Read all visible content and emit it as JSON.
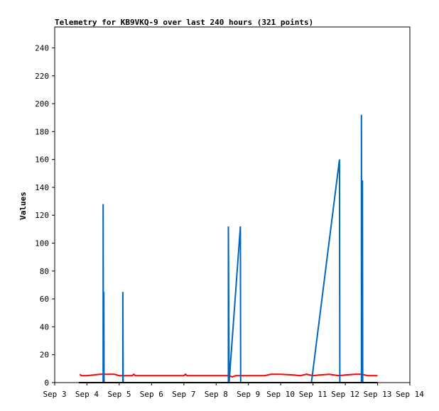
{
  "chart_data": {
    "type": "line",
    "title": "Telemetry for KB9VKQ-9 over last 240 hours (321 points)",
    "xlabel": "",
    "ylabel": "Values",
    "xlim": [
      0,
      11
    ],
    "ylim": [
      0,
      255
    ],
    "x_ticks": [
      {
        "pos": 0,
        "label": "Sep 3"
      },
      {
        "pos": 1,
        "label": "Sep 4"
      },
      {
        "pos": 2,
        "label": "Sep 5"
      },
      {
        "pos": 3,
        "label": "Sep 6"
      },
      {
        "pos": 4,
        "label": "Sep 7"
      },
      {
        "pos": 5,
        "label": "Sep 8"
      },
      {
        "pos": 6,
        "label": "Sep 9"
      },
      {
        "pos": 7,
        "label": "Sep 10"
      },
      {
        "pos": 8,
        "label": "Sep 11"
      },
      {
        "pos": 9,
        "label": "Sep 12"
      },
      {
        "pos": 10,
        "label": "Sep 13"
      },
      {
        "pos": 11,
        "label": "Sep 14"
      }
    ],
    "y_ticks": [
      0,
      20,
      40,
      60,
      80,
      100,
      120,
      140,
      160,
      180,
      200,
      220,
      240
    ],
    "grid": false,
    "legend": "none",
    "series": [
      {
        "color": "#ff0000",
        "points": [
          [
            0.78,
            6
          ],
          [
            0.82,
            5
          ],
          [
            1.0,
            5
          ],
          [
            1.2,
            5.5
          ],
          [
            1.4,
            6
          ],
          [
            1.6,
            6
          ],
          [
            1.85,
            6
          ],
          [
            2.0,
            5
          ],
          [
            2.4,
            5
          ],
          [
            2.45,
            6
          ],
          [
            2.5,
            5
          ],
          [
            3.0,
            5
          ],
          [
            3.5,
            5
          ],
          [
            4.0,
            5
          ],
          [
            4.05,
            6
          ],
          [
            4.1,
            5
          ],
          [
            4.6,
            5
          ],
          [
            5.0,
            5
          ],
          [
            5.4,
            5
          ],
          [
            5.5,
            4
          ],
          [
            5.6,
            5
          ],
          [
            6.0,
            5
          ],
          [
            6.5,
            5
          ],
          [
            6.7,
            6
          ],
          [
            7.0,
            6
          ],
          [
            7.4,
            5.5
          ],
          [
            7.6,
            5
          ],
          [
            7.8,
            6
          ],
          [
            8.0,
            5
          ],
          [
            8.2,
            5.5
          ],
          [
            8.5,
            6
          ],
          [
            8.8,
            5
          ],
          [
            9.0,
            5.5
          ],
          [
            9.3,
            6
          ],
          [
            9.5,
            6
          ],
          [
            9.7,
            5
          ],
          [
            10.0,
            5
          ]
        ]
      },
      {
        "color": "#0066bb",
        "points": [
          [
            1.5,
            0
          ],
          [
            1.5,
            128
          ],
          [
            1.51,
            0
          ],
          [
            1.52,
            65
          ],
          [
            1.53,
            0
          ],
          [
            2.11,
            0
          ],
          [
            2.11,
            65
          ],
          [
            2.12,
            0
          ],
          [
            5.38,
            0
          ],
          [
            5.38,
            112
          ],
          [
            5.4,
            0
          ],
          [
            5.75,
            112
          ],
          [
            5.76,
            0
          ],
          [
            7.95,
            0
          ],
          [
            8.82,
            160
          ],
          [
            8.83,
            0
          ],
          [
            9.5,
            0
          ],
          [
            9.5,
            192
          ],
          [
            9.51,
            0
          ],
          [
            9.53,
            145
          ],
          [
            9.54,
            0
          ]
        ]
      },
      {
        "color": "#000000",
        "points": [
          [
            0.75,
            0
          ],
          [
            10.0,
            0
          ]
        ]
      }
    ]
  }
}
